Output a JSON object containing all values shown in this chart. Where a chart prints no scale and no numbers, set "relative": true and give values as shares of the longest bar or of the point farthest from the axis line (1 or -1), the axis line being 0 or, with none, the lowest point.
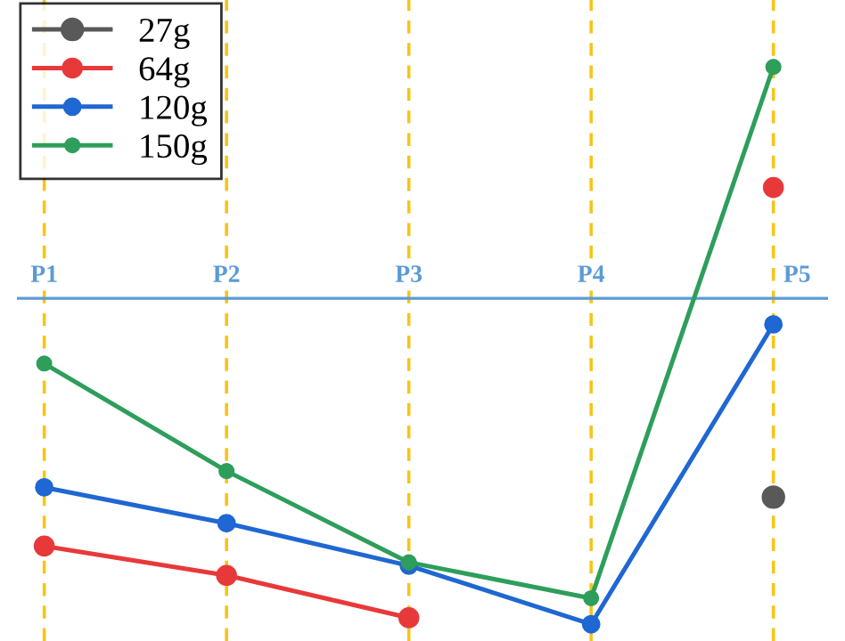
{
  "chart_data": {
    "type": "line",
    "relative": true,
    "categories": [
      "P1",
      "P2",
      "P3",
      "P4",
      "P5"
    ],
    "series": [
      {
        "name": "27g",
        "color": "#595959",
        "values": [
          null,
          null,
          null,
          null,
          -0.61
        ]
      },
      {
        "name": "64g",
        "color": "#e8393a",
        "values": [
          -0.76,
          -0.85,
          -0.98,
          null,
          0.34
        ]
      },
      {
        "name": "120g",
        "color": "#1f67d2",
        "values": [
          -0.58,
          -0.69,
          -0.82,
          -1,
          -0.08
        ]
      },
      {
        "name": "150g",
        "color": "#2e9e5b",
        "values": [
          -0.2,
          -0.53,
          -0.81,
          -0.92,
          0.71
        ]
      }
    ],
    "marker": "circle",
    "line_style": "solid",
    "grid": "x",
    "legend": "top left"
  }
}
